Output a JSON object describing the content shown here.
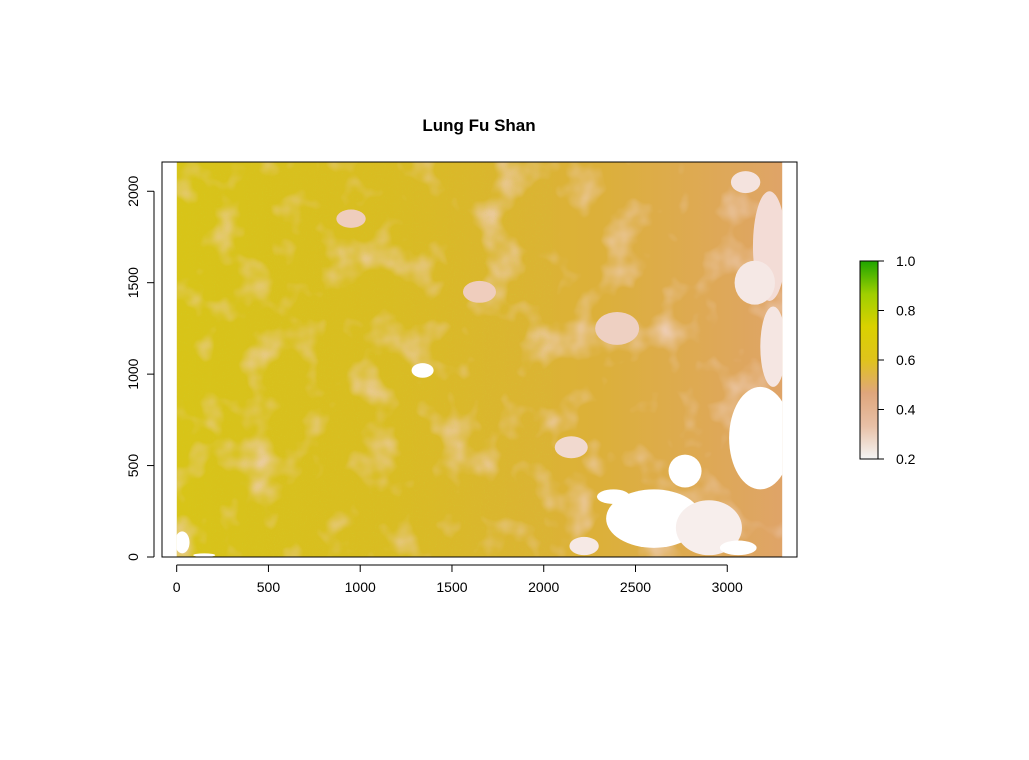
{
  "chart_data": {
    "type": "heatmap",
    "title": "Lung Fu Shan",
    "xlabel": "",
    "ylabel": "",
    "xlim": [
      -80,
      3380
    ],
    "ylim": [
      0,
      2160
    ],
    "raster_extent": {
      "x": [
        0,
        3300
      ],
      "y": [
        0,
        2160
      ]
    },
    "x_ticks": [
      0,
      500,
      1000,
      1500,
      2000,
      2500,
      3000
    ],
    "y_ticks": [
      0,
      500,
      1000,
      1500,
      2000
    ],
    "x_tick_labels": [
      "0",
      "500",
      "1000",
      "1500",
      "2000",
      "2500",
      "3000"
    ],
    "y_tick_labels": [
      "0",
      "500",
      "1000",
      "1500",
      "2000"
    ],
    "legend": {
      "placement": "right",
      "min": 0.2,
      "max": 1.0,
      "ticks": [
        0.2,
        0.4,
        0.6,
        0.8,
        1.0
      ],
      "tick_labels": [
        "0.2",
        "0.4",
        "0.6",
        "0.8",
        "1.0"
      ],
      "colors": [
        "#f5f5f5",
        "#e8c0a6",
        "#dfa67c",
        "#dfc31c",
        "#dad100",
        "#9fcf00",
        "#1ea500"
      ]
    },
    "dominant_value_range": [
      0.35,
      0.65
    ],
    "high_values_region": "left and centre",
    "low_values_region": "bottom-right and right edge"
  }
}
